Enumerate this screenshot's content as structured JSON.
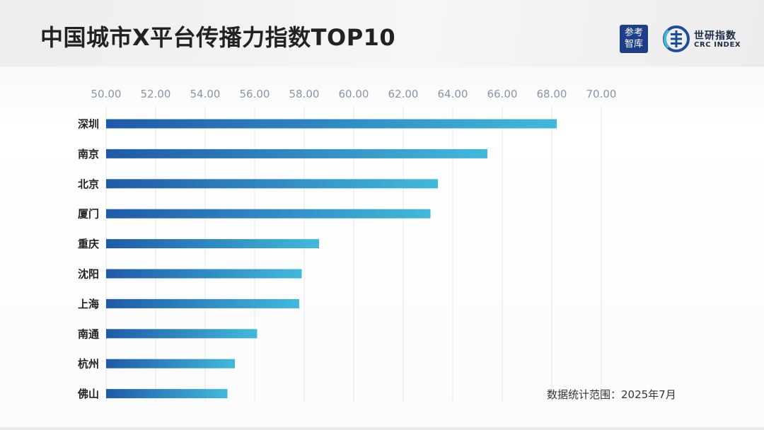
{
  "header": {
    "title": "中国城市X平台传播力指数TOP10",
    "logo1_text": "参考智库",
    "logo2_name": "世研指数",
    "logo2_sub": "CRC INDEX"
  },
  "footnote": "数据统计范围：2025年7月",
  "colors": {
    "bar_start": "#1f5aa8",
    "bar_end": "#41b9db",
    "grid": "#e3e6ea",
    "tick_text": "#8a94a6",
    "category_text": "#222222"
  },
  "chart_data": {
    "type": "bar",
    "orientation": "horizontal",
    "title": "中国城市X平台传播力指数TOP10",
    "xlabel": "",
    "ylabel": "",
    "xlim": [
      50,
      70
    ],
    "x_ticks": [
      "50.00",
      "52.00",
      "54.00",
      "56.00",
      "58.00",
      "60.00",
      "62.00",
      "64.00",
      "66.00",
      "68.00",
      "70.00"
    ],
    "categories": [
      "深圳",
      "南京",
      "北京",
      "厦门",
      "重庆",
      "沈阳",
      "上海",
      "南通",
      "杭州",
      "佛山"
    ],
    "values": [
      68.2,
      65.4,
      63.4,
      63.1,
      58.6,
      57.9,
      57.8,
      56.1,
      55.2,
      54.9
    ],
    "grid": true,
    "axis_position": "top"
  }
}
